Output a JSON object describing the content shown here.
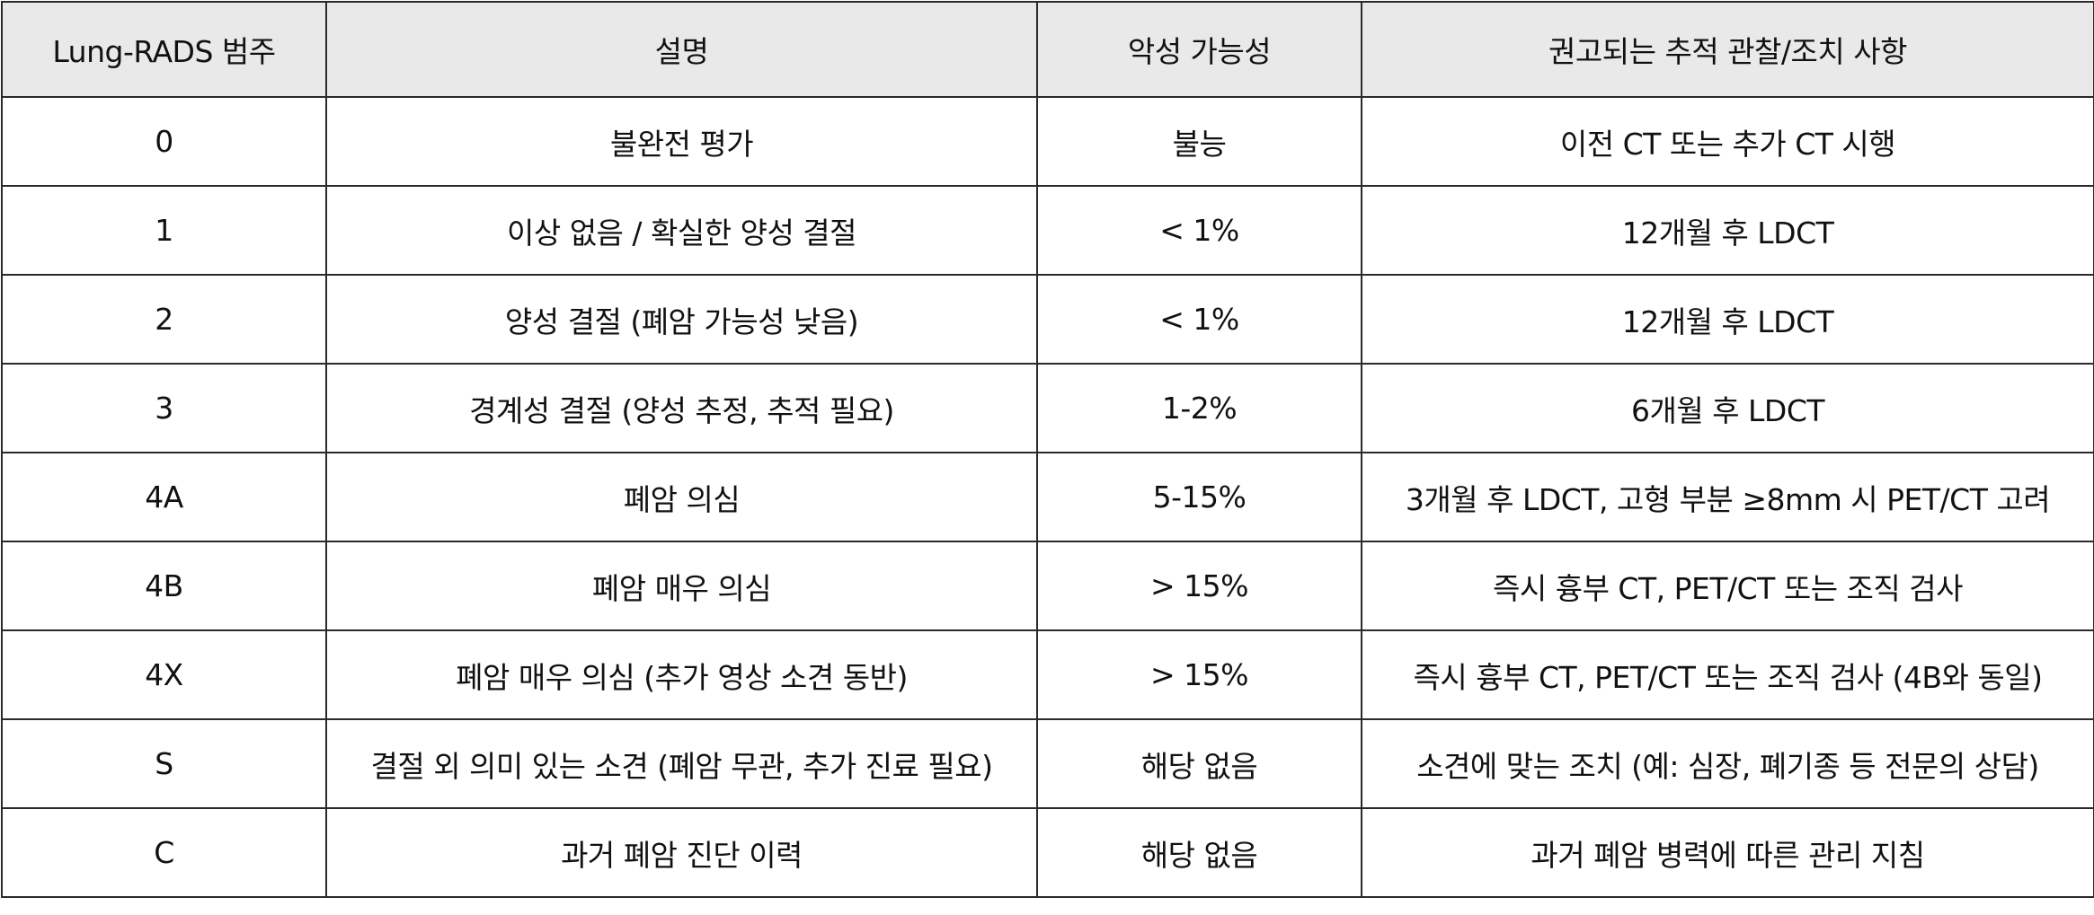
{
  "table": {
    "headers": [
      "Lung-RADS 범주",
      "설명",
      "악성 가능성",
      "권고되는 추적 관찰/조치 사항"
    ],
    "rows": [
      [
        "0",
        "불완전 평가",
        "불능",
        "이전 CT 또는 추가 CT 시행"
      ],
      [
        "1",
        "이상 없음 / 확실한 양성 결절",
        "< 1%",
        "12개월 후 LDCT"
      ],
      [
        "2",
        "양성 결절 (폐암 가능성 낮음)",
        "< 1%",
        "12개월 후 LDCT"
      ],
      [
        "3",
        "경계성 결절 (양성 추정, 추적 필요)",
        "1-2%",
        "6개월 후 LDCT"
      ],
      [
        "4A",
        "폐암 의심",
        "5-15%",
        "3개월 후 LDCT, 고형 부분 ≥8mm 시 PET/CT 고려"
      ],
      [
        "4B",
        "폐암 매우 의심",
        "> 15%",
        "즉시 흉부 CT, PET/CT 또는 조직 검사"
      ],
      [
        "4X",
        "폐암 매우 의심 (추가 영상 소견 동반)",
        "> 15%",
        "즉시 흉부 CT, PET/CT 또는 조직 검사 (4B와 동일)"
      ],
      [
        "S",
        "결절 외 의미 있는 소견 (폐암 무관, 추가 진료 필요)",
        "해당 없음",
        "소견에 맞는 조치 (예: 심장, 폐기종 등 전문의 상담)"
      ],
      [
        "C",
        "과거 폐암 진단 이력",
        "해당 없음",
        "과거 폐암 병력에 따른 관리 지침"
      ]
    ]
  }
}
